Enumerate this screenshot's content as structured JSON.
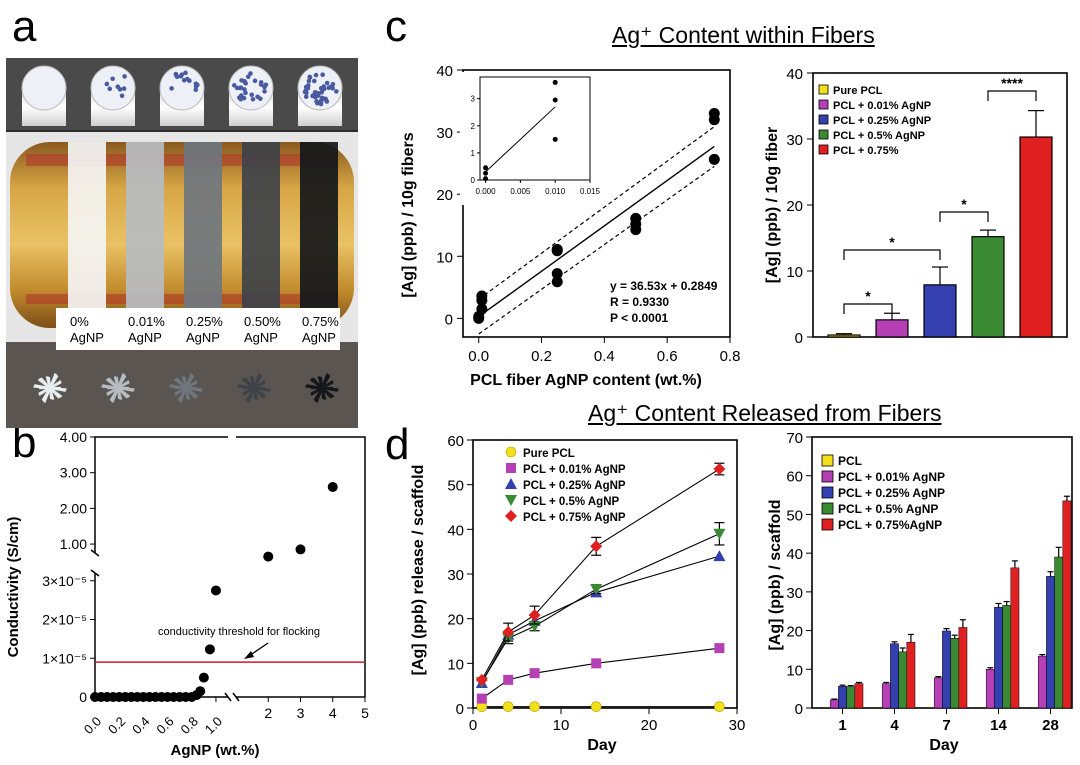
{
  "panel_labels": {
    "a": "a",
    "b": "b",
    "c": "c",
    "d": "d"
  },
  "photo": {
    "labels": [
      {
        "pct": "0%",
        "name": "AgNP"
      },
      {
        "pct": "0.01%",
        "name": "AgNP"
      },
      {
        "pct": "0.25%",
        "name": "AgNP"
      },
      {
        "pct": "0.50%",
        "name": "AgNP"
      },
      {
        "pct": "0.75%",
        "name": "AgNP"
      }
    ],
    "fiber_colors": [
      "#f4f4f4",
      "#b7bcc2",
      "#6f767e",
      "#3e4249",
      "#15171a"
    ]
  },
  "c_title": "Ag⁺ Content within Fibers",
  "d_title": "Ag⁺ Content Released from Fibers",
  "colors": {
    "yellow": "#f2e01a",
    "magenta": "#b540b5",
    "blue": "#3440b0",
    "green": "#3a8a34",
    "red": "#e02020"
  },
  "chart_data": [
    {
      "id": "b",
      "type": "scatter",
      "title": "",
      "xlabel": "AgNP (wt.%)",
      "ylabel": "Conductivity (S/cm)",
      "x_ticks_left": [
        "0.0",
        "0.2",
        "0.4",
        "0.6",
        "0.8",
        "1.0"
      ],
      "x_ticks_right": [
        "2",
        "3",
        "4",
        "5"
      ],
      "y_ticks_lower": [
        "0",
        "1×10⁻⁵",
        "2×10⁻⁵",
        "3×10⁻⁵"
      ],
      "y_ticks_upper": [
        "1.00",
        "2.00",
        "3.00",
        "4.00"
      ],
      "xlim_lower": [
        0,
        1.05
      ],
      "xlim_upper": [
        1,
        5
      ],
      "ylim_lower": [
        0,
        3.2e-05
      ],
      "ylim_upper": [
        0.75,
        4.0
      ],
      "threshold": {
        "value": 9e-06,
        "label": "conductivity threshold for flocking"
      },
      "points_lower": [
        {
          "x": 0.0,
          "y": 0
        },
        {
          "x": 0.05,
          "y": 0
        },
        {
          "x": 0.1,
          "y": 0
        },
        {
          "x": 0.15,
          "y": 0
        },
        {
          "x": 0.2,
          "y": 0
        },
        {
          "x": 0.25,
          "y": 0
        },
        {
          "x": 0.3,
          "y": 0
        },
        {
          "x": 0.35,
          "y": 0
        },
        {
          "x": 0.4,
          "y": 0
        },
        {
          "x": 0.45,
          "y": 0
        },
        {
          "x": 0.5,
          "y": 0
        },
        {
          "x": 0.55,
          "y": 0
        },
        {
          "x": 0.6,
          "y": 0
        },
        {
          "x": 0.65,
          "y": 0
        },
        {
          "x": 0.7,
          "y": 0
        },
        {
          "x": 0.75,
          "y": 0
        },
        {
          "x": 0.8,
          "y": 0
        },
        {
          "x": 0.84,
          "y": 5e-07
        },
        {
          "x": 0.87,
          "y": 1.5e-06
        },
        {
          "x": 0.9,
          "y": 5e-06
        },
        {
          "x": 0.95,
          "y": 1.23e-05
        },
        {
          "x": 1.0,
          "y": 2.75e-05
        }
      ],
      "points_upper": [
        {
          "x": 2,
          "y": 0.65
        },
        {
          "x": 3,
          "y": 0.85
        },
        {
          "x": 4,
          "y": 2.6
        }
      ]
    },
    {
      "id": "c-left",
      "type": "scatter",
      "title": "",
      "xlabel": "PCL fiber AgNP content (wt.%)",
      "ylabel": "[Ag] (ppb) / 10g fibers",
      "x_ticks": [
        "0.0",
        "0.2",
        "0.4",
        "0.6",
        "0.8"
      ],
      "y_ticks": [
        "0",
        "10",
        "20",
        "30",
        "40"
      ],
      "xlim": [
        -0.05,
        0.8
      ],
      "ylim": [
        -3,
        40
      ],
      "points": [
        {
          "x": 0.0,
          "y": 0.0
        },
        {
          "x": 0.0,
          "y": 0.3
        },
        {
          "x": 0.01,
          "y": 1.5
        },
        {
          "x": 0.01,
          "y": 2.9
        },
        {
          "x": 0.01,
          "y": 3.6
        },
        {
          "x": 0.25,
          "y": 5.9
        },
        {
          "x": 0.25,
          "y": 7.2
        },
        {
          "x": 0.25,
          "y": 10.9
        },
        {
          "x": 0.25,
          "y": 11.1
        },
        {
          "x": 0.5,
          "y": 14.3
        },
        {
          "x": 0.5,
          "y": 15.2
        },
        {
          "x": 0.5,
          "y": 16.1
        },
        {
          "x": 0.75,
          "y": 25.6
        },
        {
          "x": 0.75,
          "y": 32.0
        },
        {
          "x": 0.75,
          "y": 33.0
        }
      ],
      "fit": {
        "slope": 36.53,
        "intercept": 0.2849
      },
      "annotation": [
        "y = 36.53x + 0.2849",
        "R = 0.9330",
        "P < 0.0001"
      ],
      "inset": {
        "x_ticks": [
          "0.000",
          "0.005",
          "0.010",
          "0.015"
        ],
        "y_ticks": [
          "0",
          "1",
          "2",
          "3"
        ],
        "xlim": [
          -0.0008,
          0.015
        ],
        "ylim": [
          0,
          3.8
        ],
        "points": [
          {
            "x": 0.0,
            "y": 0.05
          },
          {
            "x": 0.0,
            "y": 0.25
          },
          {
            "x": 0.0,
            "y": 0.45
          },
          {
            "x": 0.01,
            "y": 1.5
          },
          {
            "x": 0.01,
            "y": 2.95
          },
          {
            "x": 0.01,
            "y": 3.6
          }
        ]
      }
    },
    {
      "id": "c-right",
      "type": "bar",
      "title": "",
      "xlabel": "",
      "ylabel": "[Ag] (ppb) / 10g fiber",
      "y_ticks": [
        "0",
        "10",
        "20",
        "30",
        "40"
      ],
      "ylim": [
        0,
        40
      ],
      "legend": [
        "Pure PCL",
        "PCL + 0.01% AgNP",
        "PCL + 0.25% AgNP",
        "PCL + 0.5% AgNP",
        "PCL + 0.75%"
      ],
      "legend_position": "top-left",
      "values": [
        0.3,
        2.6,
        7.9,
        15.2,
        30.3
      ],
      "errors": [
        0.2,
        1.0,
        2.7,
        1.0,
        4.0
      ],
      "significance": [
        "*",
        "*",
        "*",
        "****"
      ]
    },
    {
      "id": "d-left",
      "type": "line",
      "title": "",
      "xlabel": "Day",
      "ylabel": "[Ag] (ppb) release / scaffold",
      "x_ticks": [
        "0",
        "10",
        "20",
        "30"
      ],
      "y_ticks": [
        "0",
        "10",
        "20",
        "30",
        "40",
        "50",
        "60"
      ],
      "xlim": [
        0,
        30
      ],
      "ylim": [
        0,
        60
      ],
      "legend_position": "top-left",
      "x": [
        1,
        4,
        7,
        14,
        28
      ],
      "series": [
        {
          "name": "Pure PCL",
          "values": [
            0.3,
            0.3,
            0.3,
            0.3,
            0.3
          ],
          "errors": [
            0,
            0,
            0,
            0,
            0
          ],
          "marker": "circle"
        },
        {
          "name": "PCL + 0.01% AgNP",
          "values": [
            2.1,
            6.3,
            7.8,
            10.0,
            13.4
          ],
          "errors": [
            0,
            0,
            0,
            0,
            0
          ],
          "marker": "square"
        },
        {
          "name": "PCL + 0.25% AgNP",
          "values": [
            5.6,
            16.4,
            19.5,
            25.9,
            34.0
          ],
          "errors": [
            0,
            0,
            0,
            0,
            0
          ],
          "marker": "triangle-up"
        },
        {
          "name": "PCL + 0.5% AgNP",
          "values": [
            5.8,
            15.6,
            18.3,
            26.6,
            39.0
          ],
          "errors": [
            0,
            1.2,
            1.0,
            1.0,
            2.5
          ],
          "marker": "triangle-down"
        },
        {
          "name": "PCL + 0.75% AgNP",
          "values": [
            6.3,
            17.0,
            20.8,
            36.2,
            53.5
          ],
          "errors": [
            0,
            2.0,
            2.0,
            2.0,
            1.3
          ],
          "marker": "diamond"
        }
      ]
    },
    {
      "id": "d-right",
      "type": "bar",
      "title": "",
      "xlabel": "Day",
      "ylabel": "[Ag] (ppb) / scaffold",
      "categories": [
        "1",
        "4",
        "7",
        "14",
        "28"
      ],
      "y_ticks": [
        "0",
        "10",
        "20",
        "30",
        "40",
        "50",
        "60",
        "70"
      ],
      "ylim": [
        0,
        70
      ],
      "legend_position": "top-left",
      "series": [
        {
          "name": "PCL",
          "values": [
            0.2,
            0.2,
            0.2,
            0.2,
            0.2
          ],
          "errors": [
            0,
            0,
            0,
            0,
            0
          ]
        },
        {
          "name": "PCL + 0.01% AgNP",
          "values": [
            2.1,
            6.3,
            7.8,
            10.0,
            13.4
          ],
          "errors": [
            0.2,
            0.3,
            0.3,
            0.4,
            0.4
          ]
        },
        {
          "name": "PCL + 0.25% AgNP",
          "values": [
            5.6,
            16.6,
            19.9,
            26.0,
            34.0
          ],
          "errors": [
            0.3,
            0.5,
            0.6,
            1.0,
            1.2
          ]
        },
        {
          "name": "PCL + 0.5% AgNP",
          "values": [
            5.5,
            14.5,
            18.0,
            26.5,
            39.0
          ],
          "errors": [
            0.3,
            1.0,
            0.8,
            1.0,
            2.5
          ]
        },
        {
          "name": "PCL + 0.75%AgNP",
          "values": [
            6.3,
            17.0,
            20.8,
            36.2,
            53.5
          ],
          "errors": [
            0.3,
            2.0,
            2.0,
            1.8,
            1.2
          ]
        }
      ]
    }
  ]
}
